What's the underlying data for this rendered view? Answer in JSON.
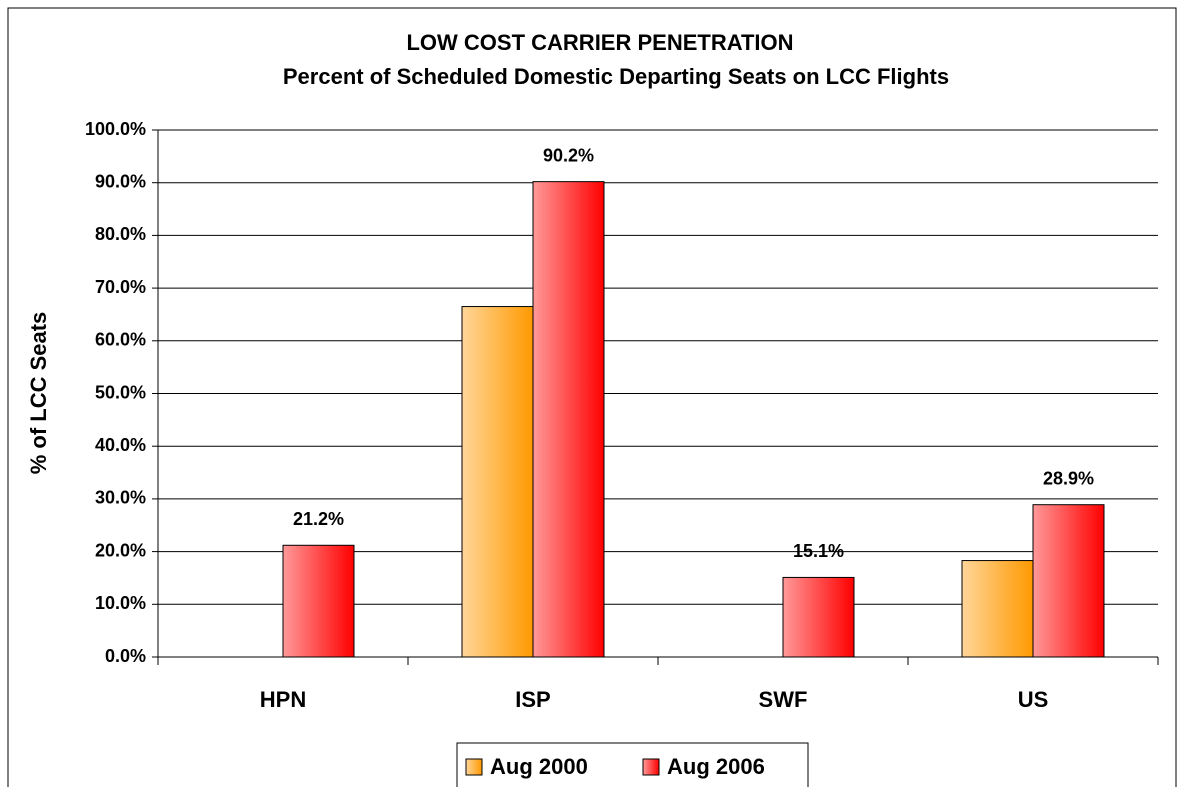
{
  "chart_data": {
    "type": "bar",
    "title": "LOW COST CARRIER PENETRATION",
    "subtitle": "Percent of Scheduled Domestic Departing Seats on LCC Flights",
    "y_label": "% of LCC Seats",
    "categories": [
      "HPN",
      "ISP",
      "SWF",
      "US"
    ],
    "series": [
      {
        "name": "Aug 2000",
        "color": "#ff9900",
        "values": [
          0,
          66.5,
          0,
          18.3
        ]
      },
      {
        "name": "Aug 2006",
        "color": "#ff0000",
        "values": [
          21.2,
          90.2,
          15.1,
          28.9
        ],
        "value_labels": [
          "21.2%",
          "90.2%",
          "15.1%",
          "28.9%"
        ]
      }
    ],
    "ylim": [
      0,
      100
    ],
    "yticks": [
      {
        "value": 0,
        "label": "0.0%"
      },
      {
        "value": 10,
        "label": "10.0%"
      },
      {
        "value": 20,
        "label": "20.0%"
      },
      {
        "value": 30,
        "label": "30.0%"
      },
      {
        "value": 40,
        "label": "40.0%"
      },
      {
        "value": 50,
        "label": "50.0%"
      },
      {
        "value": 60,
        "label": "60.0%"
      },
      {
        "value": 70,
        "label": "70.0%"
      },
      {
        "value": 80,
        "label": "80.0%"
      },
      {
        "value": 90,
        "label": "90.0%"
      },
      {
        "value": 100,
        "label": "100.0%"
      }
    ],
    "grid": true,
    "legend": "bottom"
  }
}
